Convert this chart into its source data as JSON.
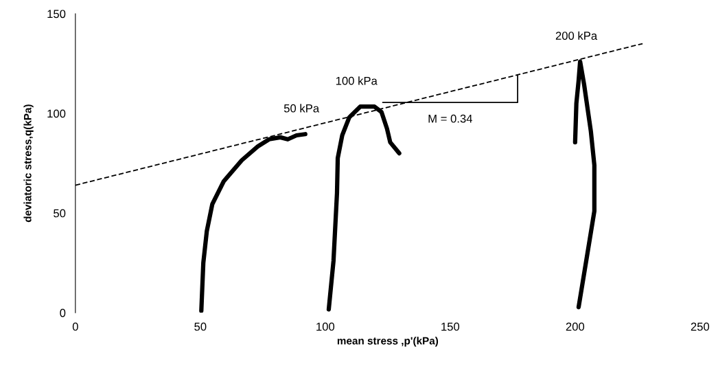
{
  "chart_data": {
    "type": "line",
    "xlabel": "mean stress ,p'(kPa)",
    "ylabel": "deviatoric stress,q(kPa)",
    "xlim": [
      0,
      250
    ],
    "ylim": [
      0,
      150
    ],
    "xticks": [
      0,
      50,
      100,
      150,
      200,
      250
    ],
    "yticks": [
      0,
      50,
      100,
      150
    ],
    "grid": false,
    "legend": false,
    "marker": "none",
    "series": [
      {
        "name": "50 kPa",
        "color": "#000000",
        "x": [
          50.4,
          51.2,
          52.6,
          54.8,
          59.4,
          66.6,
          73,
          77.5,
          82,
          85,
          88.5,
          92
        ],
        "values": [
          1,
          25,
          41,
          54.5,
          66,
          76.5,
          83.4,
          87,
          88,
          87,
          89,
          89.6
        ]
      },
      {
        "name": "100 kPa",
        "color": "#000000",
        "x": [
          101.4,
          103.3,
          104.7,
          105,
          106.8,
          109.6,
          114,
          119.7,
          122.5,
          124.7,
          126,
          129.6
        ],
        "values": [
          1.7,
          26,
          60,
          77.6,
          89,
          98,
          103.4,
          103.4,
          100.7,
          92.4,
          85.5,
          80
        ]
      },
      {
        "name": "200 kPa",
        "color": "#000000",
        "x": [
          201.4,
          204.7,
          207.7,
          207.7,
          206.3,
          203.6,
          202,
          201.4,
          200.5,
          200
        ],
        "values": [
          2.8,
          28,
          51,
          74,
          91,
          114.5,
          126,
          116.5,
          105,
          85.5
        ]
      },
      {
        "color": "#000000",
        "line_style": "dashed",
        "x": [
          0,
          227
        ],
        "values": [
          64,
          135
        ]
      },
      {
        "color": "#000000",
        "line_style": "solid",
        "x": [
          123,
          177,
          177
        ],
        "values": [
          105.5,
          105.5,
          119
        ]
      }
    ],
    "annotations": [
      "M = 0.34"
    ]
  }
}
